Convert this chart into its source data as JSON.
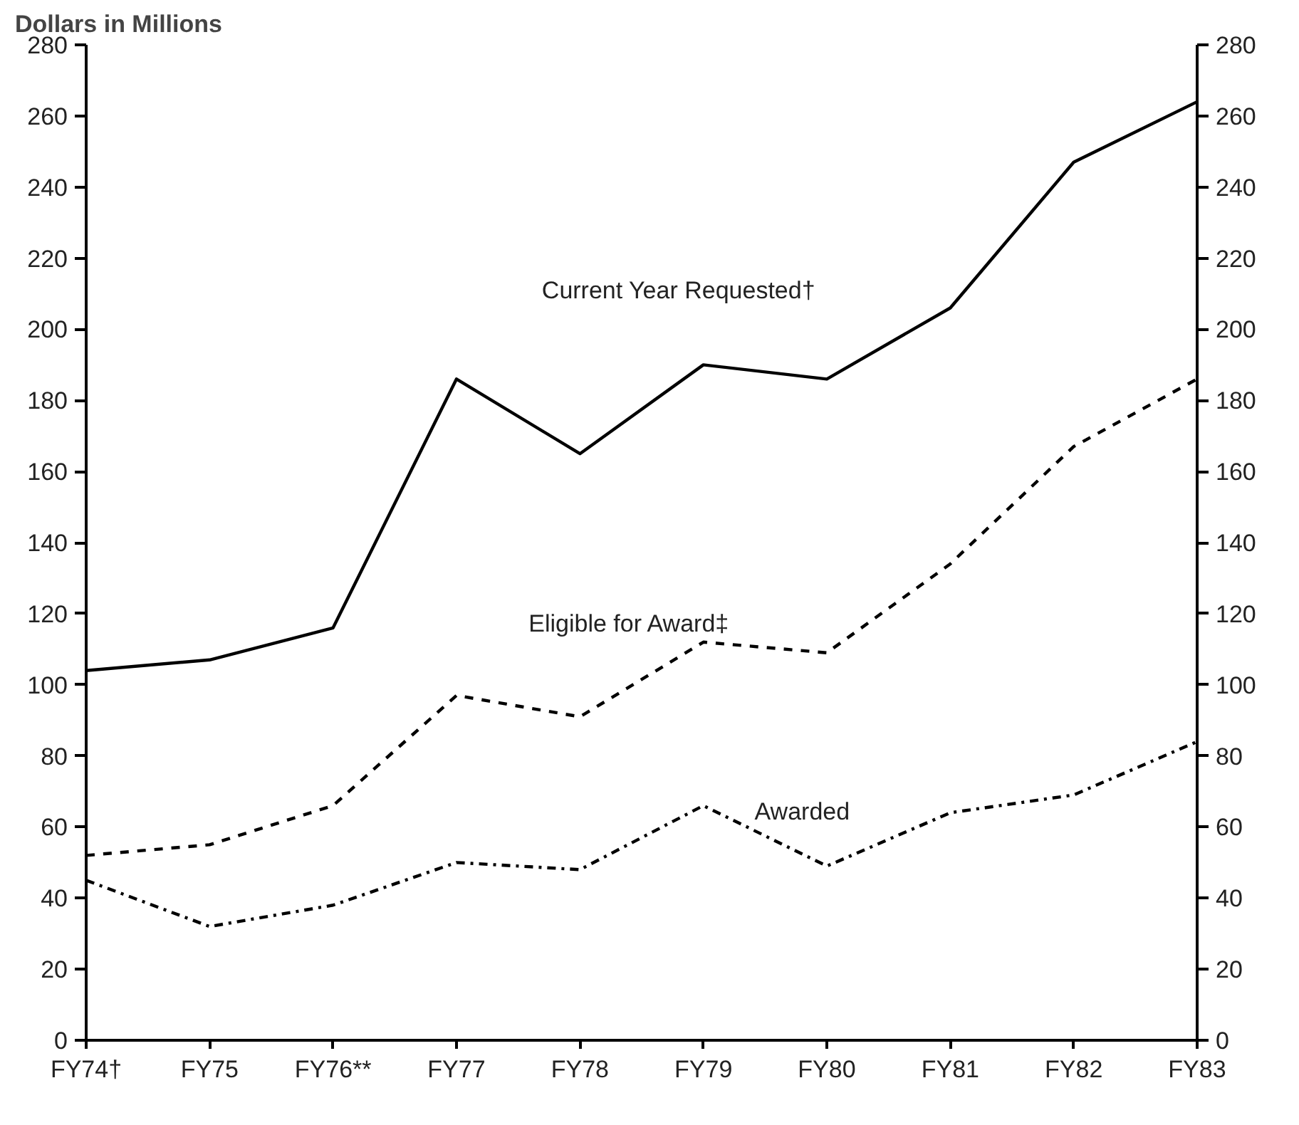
{
  "chart_data": {
    "type": "line",
    "title": "Dollars in Millions",
    "categories": [
      "FY74†",
      "FY75",
      "FY76**",
      "FY77",
      "FY78",
      "FY79",
      "FY80",
      "FY81",
      "FY82",
      "FY83"
    ],
    "series": [
      {
        "name": "Current Year Requested†",
        "color": "#000000",
        "line_style": "solid",
        "values": [
          104,
          107,
          116,
          186,
          165,
          190,
          186,
          206,
          247,
          264
        ]
      },
      {
        "name": "Eligible for Award‡",
        "color": "#000000",
        "line_style": "dashed",
        "values": [
          52,
          55,
          66,
          97,
          91,
          112,
          109,
          134,
          167,
          186
        ]
      },
      {
        "name": "Awarded",
        "color": "#000000",
        "line_style": "dashdot",
        "values": [
          45,
          32,
          38,
          50,
          48,
          66,
          49,
          64,
          69,
          84
        ]
      }
    ],
    "ylim": [
      0,
      280
    ],
    "yticks": [
      0,
      20,
      40,
      60,
      80,
      100,
      120,
      140,
      160,
      180,
      200,
      220,
      240,
      260,
      280
    ],
    "y2lim": [
      0,
      280
    ],
    "y2ticks": [
      0,
      20,
      40,
      60,
      80,
      100,
      120,
      140,
      160,
      180,
      200,
      220,
      240,
      260,
      280
    ],
    "grid": false,
    "marker": "none"
  }
}
